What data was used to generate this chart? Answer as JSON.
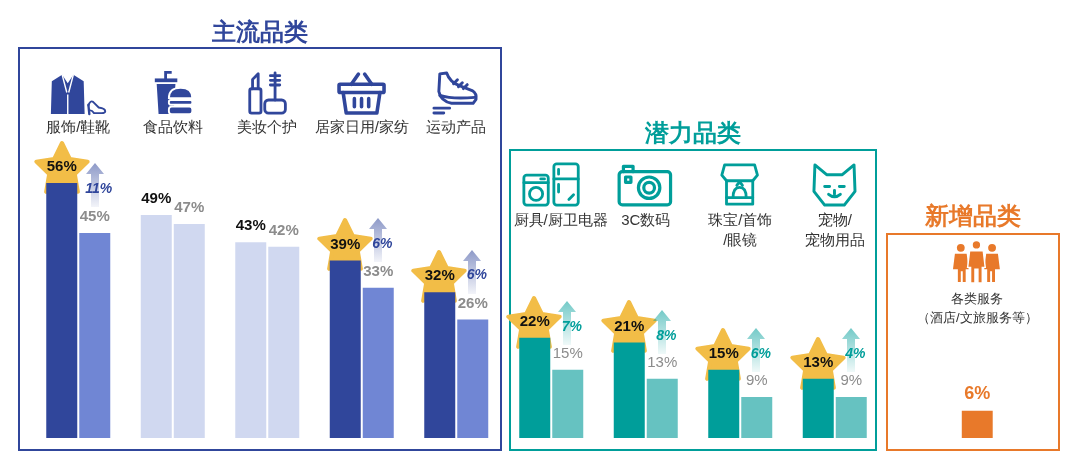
{
  "chart_data": [
    {
      "type": "bar",
      "title": "主流品类",
      "categories": [
        "服饰/鞋靴",
        "食品饮料",
        "美妆个护",
        "居家日用/家纺",
        "运动产品"
      ],
      "series": [
        {
          "values": [
            56,
            49,
            43,
            39,
            32
          ],
          "colors": [
            "#30469b",
            "#d0d8f0",
            "#d0d8f0",
            "#30469b",
            "#30469b"
          ],
          "value_labels": [
            "56%",
            "49%",
            "43%",
            "39%",
            "32%"
          ]
        },
        {
          "values": [
            45,
            47,
            42,
            33,
            26
          ],
          "colors": [
            "#7086d4",
            "#d0d8f0",
            "#d0d8f0",
            "#7086d4",
            "#7086d4"
          ],
          "value_labels": [
            "45%",
            "47%",
            "42%",
            "33%",
            "26%"
          ]
        }
      ],
      "annotations": [
        {
          "text": "11%",
          "x": "服饰/鞋靴",
          "y": 45
        },
        {
          "text": "6%",
          "x": "居家日用/家纺",
          "y": 33
        },
        {
          "text": "6%",
          "x": "运动产品",
          "y": 26
        }
      ],
      "tick_labels": "x"
    },
    {
      "type": "bar",
      "title": "潜力品类",
      "categories": [
        "厨具/厨卫电器",
        "3C数码",
        "珠宝/首饰/眼镜",
        "宠物/宠物用品"
      ],
      "series": [
        {
          "values": [
            22,
            21,
            15,
            13
          ],
          "color": "#009e9a",
          "value_labels": [
            "22%",
            "21%",
            "15%",
            "13%"
          ]
        },
        {
          "values": [
            15,
            13,
            9,
            9
          ],
          "color": "#66c2c1",
          "value_labels": [
            "15%",
            "13%",
            "9%",
            "9%"
          ]
        }
      ],
      "annotations": [
        {
          "text": "7%",
          "x": "厨具/厨卫电器",
          "y": 15
        },
        {
          "text": "8%",
          "x": "3C数码",
          "y": 13
        },
        {
          "text": "6%",
          "x": "珠宝/首饰/眼镜",
          "y": 9
        },
        {
          "text": "4%",
          "x": "宠物/宠物用品",
          "y": 9
        }
      ],
      "tick_labels": "x"
    },
    {
      "type": "bar",
      "title": "新增品类",
      "categories": [
        "各类服务（酒店/文旅服务等）"
      ],
      "series": [
        {
          "values": [
            6
          ],
          "color": "#e8792a",
          "value_labels": [
            "6%"
          ]
        }
      ],
      "tick_labels": "x"
    }
  ]
}
